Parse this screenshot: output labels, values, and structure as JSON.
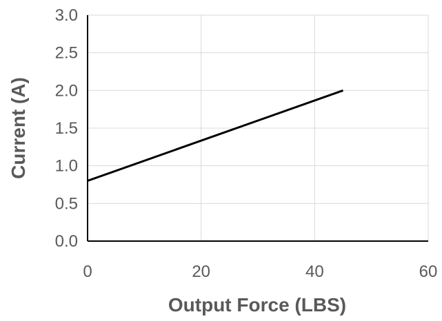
{
  "chart_data": {
    "type": "line",
    "title": "",
    "xlabel": "Output Force (LBS)",
    "ylabel": "Current (A)",
    "xlim": [
      0,
      60
    ],
    "ylim": [
      0,
      3.0
    ],
    "x_ticks": [
      0,
      20,
      40,
      60
    ],
    "y_ticks": [
      0.0,
      0.5,
      1.0,
      1.5,
      2.0,
      2.5,
      3.0
    ],
    "x_tick_labels": [
      "0",
      "20",
      "40",
      "60"
    ],
    "y_tick_labels": [
      "0.0",
      "0.5",
      "1.0",
      "1.5",
      "2.0",
      "2.5",
      "3.0"
    ],
    "grid": true,
    "legend": "none",
    "series": [
      {
        "color": "#000000",
        "x": [
          0,
          45
        ],
        "y": [
          0.8,
          2.0
        ]
      }
    ]
  }
}
